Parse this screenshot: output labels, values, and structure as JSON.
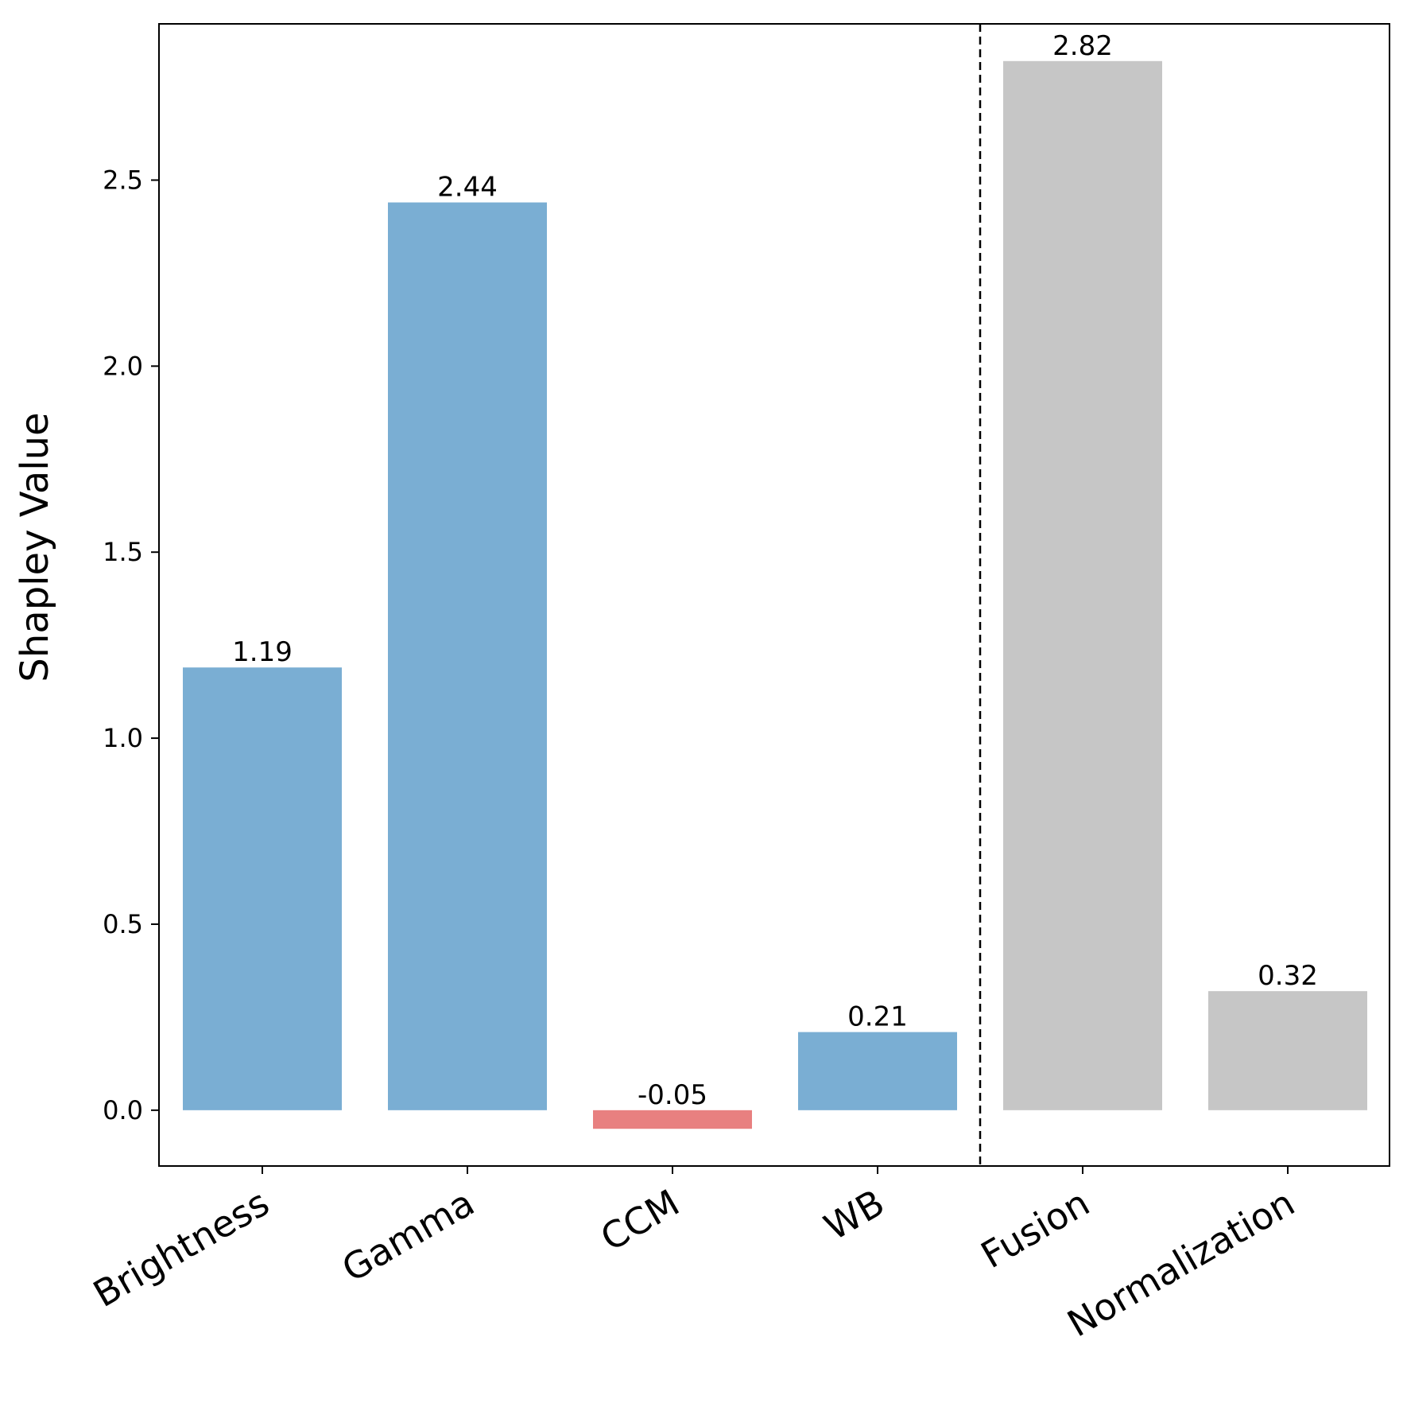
{
  "chart_data": {
    "type": "bar",
    "title": "",
    "xlabel": "",
    "ylabel": "Shapley Value",
    "categories": [
      "Brightness",
      "Gamma",
      "CCM",
      "WB",
      "Fusion",
      "Normalization"
    ],
    "values": [
      1.19,
      2.44,
      -0.05,
      0.21,
      2.82,
      0.32
    ],
    "value_labels": [
      "1.19",
      "2.44",
      "-0.05",
      "0.21",
      "2.82",
      "0.32"
    ],
    "bar_groups": [
      "pipeline",
      "pipeline",
      "pipeline",
      "pipeline",
      "other",
      "other"
    ],
    "yticks": [
      0.0,
      0.5,
      1.0,
      1.5,
      2.0,
      2.5
    ],
    "ytick_labels": [
      "0.0",
      "0.5",
      "1.0",
      "1.5",
      "2.0",
      "2.5"
    ],
    "ylim": [
      -0.15,
      2.92
    ],
    "divider_between": [
      "WB",
      "Fusion"
    ],
    "grid": false,
    "colors": {
      "positive": "#7aaed3",
      "negative": "#e88080",
      "other": "#c6c6c6",
      "axis": "#000000"
    }
  }
}
